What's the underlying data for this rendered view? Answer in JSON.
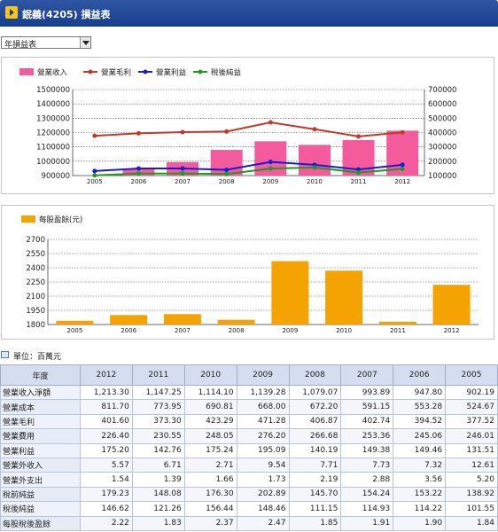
{
  "header": {
    "title": "鈱義(4205) 損益表"
  },
  "report_select": {
    "value": "年損益表"
  },
  "unit_label": "單位：百萬元",
  "table": {
    "corner": "年度",
    "years": [
      "2012",
      "2011",
      "2010",
      "2009",
      "2008",
      "2007",
      "2006",
      "2005"
    ],
    "rows": [
      {
        "label": "營業收入淨額",
        "values": [
          "1,213.30",
          "1,147.25",
          "1,114.10",
          "1,139.28",
          "1,079.07",
          "993.89",
          "947.80",
          "902.19"
        ]
      },
      {
        "label": "營業成本",
        "values": [
          "811.70",
          "773.95",
          "690.81",
          "668.00",
          "672.20",
          "591.15",
          "553.28",
          "524.67"
        ]
      },
      {
        "label": "營業毛利",
        "values": [
          "401.60",
          "373.30",
          "423.29",
          "471.28",
          "406.87",
          "402.74",
          "394.52",
          "377.52"
        ]
      },
      {
        "label": "營業費用",
        "values": [
          "226.40",
          "230.55",
          "248.05",
          "276.20",
          "266.68",
          "253.36",
          "245.06",
          "246.01"
        ]
      },
      {
        "label": "營業利益",
        "values": [
          "175.20",
          "142.76",
          "175.24",
          "195.09",
          "140.19",
          "149.38",
          "149.46",
          "131.51"
        ]
      },
      {
        "label": "營業外收入",
        "values": [
          "5.57",
          "6.71",
          "2.71",
          "9.54",
          "7.71",
          "7.73",
          "7.32",
          "12.61"
        ]
      },
      {
        "label": "營業外支出",
        "values": [
          "1.54",
          "1.39",
          "1.66",
          "1.73",
          "2.19",
          "2.88",
          "3.56",
          "5.20"
        ]
      },
      {
        "label": "稅前純益",
        "values": [
          "179.23",
          "148.08",
          "176.30",
          "202.89",
          "145.70",
          "154.24",
          "153.22",
          "138.92"
        ]
      },
      {
        "label": "稅後純益",
        "values": [
          "146.62",
          "121.26",
          "156.44",
          "148.46",
          "111.15",
          "114.93",
          "114.22",
          "101.55"
        ]
      },
      {
        "label": "每股稅後盈餘",
        "values": [
          "2.22",
          "1.83",
          "2.37",
          "2.47",
          "1.85",
          "1.91",
          "1.90",
          "1.84"
        ]
      }
    ]
  },
  "chart_data": [
    {
      "type": "bar",
      "categories": [
        "2005",
        "2006",
        "2007",
        "2008",
        "2009",
        "2010",
        "2011",
        "2012"
      ],
      "ylim_left": [
        900000,
        1500000
      ],
      "yticks_left": [
        "900000",
        "1000000",
        "1100000",
        "1200000",
        "1300000",
        "1400000",
        "1500000"
      ],
      "ylim_right": [
        100000,
        700000
      ],
      "yticks_right": [
        "100000",
        "200000",
        "300000",
        "400000",
        "500000",
        "600000",
        "700000"
      ],
      "legend_position": "top-left",
      "series": [
        {
          "name": "營業收入",
          "kind": "bar",
          "axis": "left",
          "color": "#f45b9c",
          "values": [
            902190,
            947800,
            993890,
            1079070,
            1139280,
            1114100,
            1147250,
            1213300
          ]
        },
        {
          "name": "營業毛利",
          "kind": "line",
          "axis": "right",
          "color": "#c0392b",
          "values": [
            377520,
            394520,
            402740,
            406870,
            471280,
            423290,
            373300,
            401600
          ]
        },
        {
          "name": "營業利益",
          "kind": "line",
          "axis": "right",
          "color": "#1a1adb",
          "values": [
            131510,
            149460,
            149380,
            140190,
            195090,
            175240,
            142760,
            175200
          ]
        },
        {
          "name": "稅後純益",
          "kind": "line",
          "axis": "right",
          "color": "#1e9a1e",
          "values": [
            101550,
            114220,
            114930,
            111150,
            148460,
            156440,
            121260,
            146620
          ]
        }
      ]
    },
    {
      "type": "bar",
      "categories": [
        "2005",
        "2006",
        "2007",
        "2008",
        "2009",
        "2010",
        "2011",
        "2012"
      ],
      "ylim": [
        1800,
        2700
      ],
      "yticks": [
        "1800",
        "1950",
        "2100",
        "2250",
        "2400",
        "2550",
        "2700"
      ],
      "legend_position": "top-left",
      "series": [
        {
          "name": "每股盈餘(元)",
          "color": "#f5a300",
          "values": [
            1840,
            1900,
            1910,
            1850,
            2470,
            2370,
            1830,
            2220
          ]
        }
      ]
    }
  ]
}
